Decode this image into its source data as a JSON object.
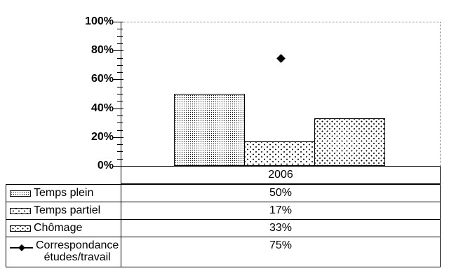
{
  "chart_data": {
    "type": "bar",
    "title": "",
    "xlabel": "",
    "ylabel": "",
    "categories": [
      "2006"
    ],
    "series": [
      {
        "name": "Temps plein",
        "type": "bar",
        "pattern": "dense-dots",
        "values": [
          50
        ]
      },
      {
        "name": "Temps partiel",
        "type": "bar",
        "pattern": "scatter-marks",
        "values": [
          17
        ]
      },
      {
        "name": "Chômage",
        "type": "bar",
        "pattern": "diagonal-dots",
        "values": [
          33
        ]
      },
      {
        "name": "Correspondance études/travail",
        "type": "scatter",
        "marker": "diamond",
        "values": [
          75
        ]
      }
    ],
    "ylim": [
      0,
      100
    ],
    "y_major_tick_step": 20,
    "y_minor_tick_step": 5,
    "y_tick_labels": [
      "0%",
      "20%",
      "40%",
      "60%",
      "80%",
      "100%"
    ],
    "grid": "dotted line at 100% only, dotted right plot border",
    "legend_position": "bottom-table"
  },
  "data_table": {
    "rows": [
      {
        "label": "Temps plein",
        "value": "50%"
      },
      {
        "label": "Temps partiel",
        "value": "17%"
      },
      {
        "label": "Chômage",
        "value": "33%"
      },
      {
        "label": "Correspondance\nétudes/travail",
        "value": "75%"
      }
    ]
  },
  "colors": {
    "background": "#ffffff",
    "foreground": "#000000",
    "plot_border": "#808080"
  }
}
